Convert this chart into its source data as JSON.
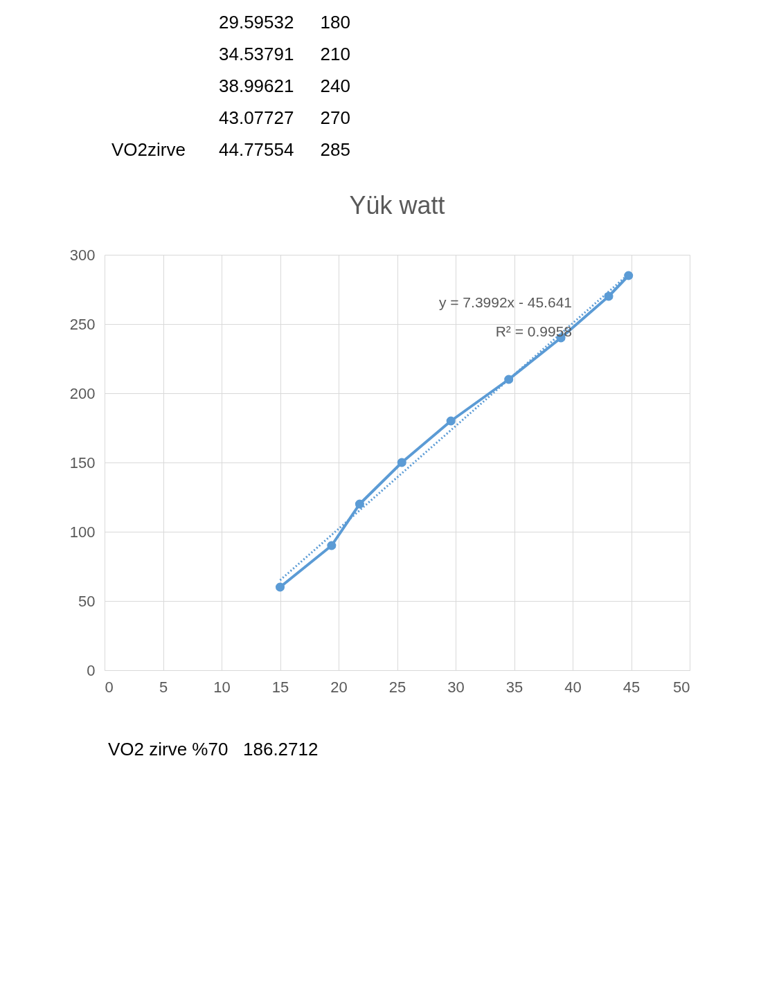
{
  "chart_data": {
    "type": "line",
    "title": "Yük watt",
    "xlim": [
      0,
      50
    ],
    "xticks": [
      0,
      5,
      10,
      15,
      20,
      25,
      30,
      35,
      40,
      45,
      50
    ],
    "ylim": [
      0,
      300
    ],
    "yticks": [
      0,
      50,
      100,
      150,
      200,
      250,
      300
    ],
    "grid": true,
    "series": [
      {
        "color": "#5b9bd5",
        "marker": "circle",
        "line_style": "solid",
        "x": [
          15,
          19.4,
          21.8,
          25.4,
          29.59532,
          34.53791,
          38.99621,
          43.07727,
          44.77554
        ],
        "values": [
          60,
          90,
          120,
          150,
          180,
          210,
          240,
          270,
          285
        ]
      },
      {
        "type": "line",
        "color": "#5b9bd5",
        "marker": "none",
        "line_style": "dotted",
        "x": [
          15,
          44.77554
        ],
        "values": [
          65,
          286
        ]
      }
    ],
    "annotations": [
      "y = 7.3992x - 45.641",
      "R² = 0.9958",
      "29.59532",
      "180",
      "34.53791",
      "210",
      "38.99621",
      "240",
      "43.07727",
      "270",
      "VO2zirve",
      "44.77554",
      "285",
      "VO2 zirve %70",
      "186.2712"
    ]
  }
}
